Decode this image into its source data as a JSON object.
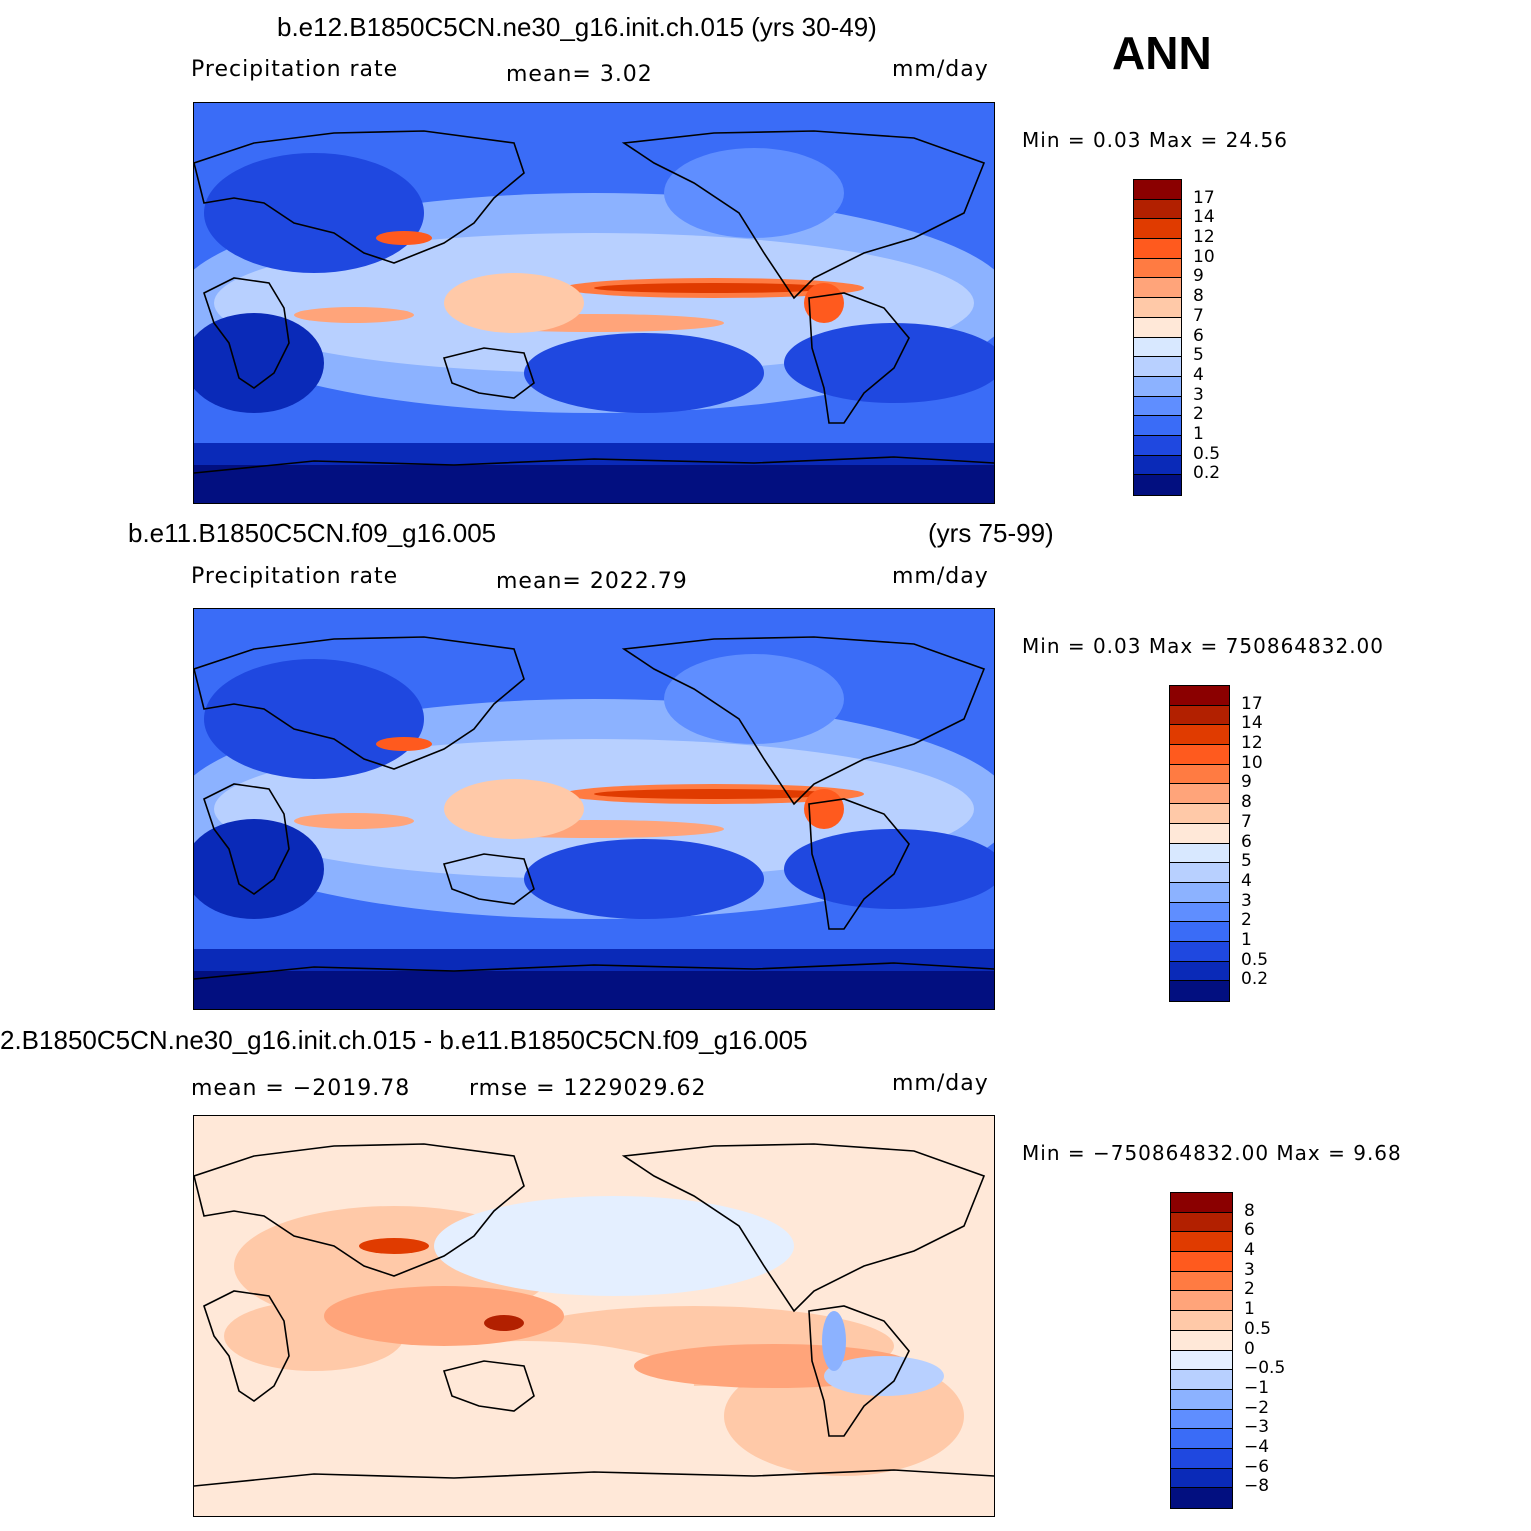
{
  "season_label": "ANN",
  "panels": [
    {
      "title_left": "b.e12.B1850C5CN.ne30_g16.init.ch.015 (yrs 30-49)",
      "title_right": "",
      "variable": "Precipitation  rate",
      "mean_text": "mean=    3.02",
      "units": "mm/day",
      "minmax_text": "Min  =     0.03  Max  =    24.56",
      "colorbar_labels": [
        "17",
        "14",
        "12",
        "10",
        "9",
        "8",
        "7",
        "6",
        "5",
        "4",
        "3",
        "2",
        "1",
        "0.5",
        "0.2"
      ],
      "colorbar_colors": [
        "#8b0000",
        "#b22000",
        "#e03b00",
        "#ff5a1e",
        "#ff7b42",
        "#ffa47a",
        "#ffc9a8",
        "#ffe8d8",
        "#d8e8ff",
        "#b8d0ff",
        "#8cb2ff",
        "#5f8eff",
        "#3a6cf7",
        "#1f48e0",
        "#0a2ab8",
        "#020f80"
      ]
    },
    {
      "title_left": "b.e11.B1850C5CN.f09_g16.005",
      "title_right": "(yrs 75-99)",
      "variable": "Precipitation  rate",
      "mean_text": "mean=  2022.79",
      "units": "mm/day",
      "minmax_text": "Min  =     0.03  Max  =  750864832.00",
      "colorbar_labels": [
        "17",
        "14",
        "12",
        "10",
        "9",
        "8",
        "7",
        "6",
        "5",
        "4",
        "3",
        "2",
        "1",
        "0.5",
        "0.2"
      ],
      "colorbar_colors": [
        "#8b0000",
        "#b22000",
        "#e03b00",
        "#ff5a1e",
        "#ff7b42",
        "#ffa47a",
        "#ffc9a8",
        "#ffe8d8",
        "#d8e8ff",
        "#b8d0ff",
        "#8cb2ff",
        "#5f8eff",
        "#3a6cf7",
        "#1f48e0",
        "#0a2ab8",
        "#020f80"
      ]
    },
    {
      "title_left": "2.B1850C5CN.ne30_g16.init.ch.015 - b.e11.B1850C5CN.f09_g16.005",
      "title_right": "",
      "variable": "",
      "mean_text": "mean  =  −2019.78",
      "rmse_text": "rmse  =  1229029.62",
      "units": "mm/day",
      "minmax_text": "Min  =  −750864832.00  Max  =     9.68",
      "colorbar_labels": [
        "8",
        "6",
        "4",
        "3",
        "2",
        "1",
        "0.5",
        "0",
        "−0.5",
        "−1",
        "−2",
        "−3",
        "−4",
        "−6",
        "−8"
      ],
      "colorbar_colors": [
        "#8b0000",
        "#b22000",
        "#e03b00",
        "#ff5a1e",
        "#ff7b42",
        "#ffa47a",
        "#ffc9a8",
        "#ffe8d8",
        "#e4efff",
        "#b8d0ff",
        "#8cb2ff",
        "#5f8eff",
        "#3a6cf7",
        "#1f48e0",
        "#0a2ab8",
        "#020f80"
      ]
    }
  ],
  "chart_data": {
    "type": "heatmap",
    "description_free": true,
    "panels": [
      {
        "panel": "control",
        "units": "mm/day",
        "mean": 3.02,
        "min": 0.03,
        "max": 24.56,
        "levels": [
          0.2,
          0.5,
          1,
          2,
          3,
          4,
          5,
          6,
          7,
          8,
          9,
          10,
          12,
          14,
          17
        ]
      },
      {
        "panel": "reference",
        "units": "mm/day",
        "mean": 2022.79,
        "min": 0.03,
        "max": 750864832.0,
        "levels": [
          0.2,
          0.5,
          1,
          2,
          3,
          4,
          5,
          6,
          7,
          8,
          9,
          10,
          12,
          14,
          17
        ]
      },
      {
        "panel": "difference",
        "units": "mm/day",
        "mean": -2019.78,
        "rmse": 1229029.62,
        "min": -750864832.0,
        "max": 9.68,
        "levels": [
          -8,
          -6,
          -4,
          -3,
          -2,
          -1,
          -0.5,
          0,
          0.5,
          1,
          2,
          3,
          4,
          6,
          8
        ]
      }
    ]
  }
}
